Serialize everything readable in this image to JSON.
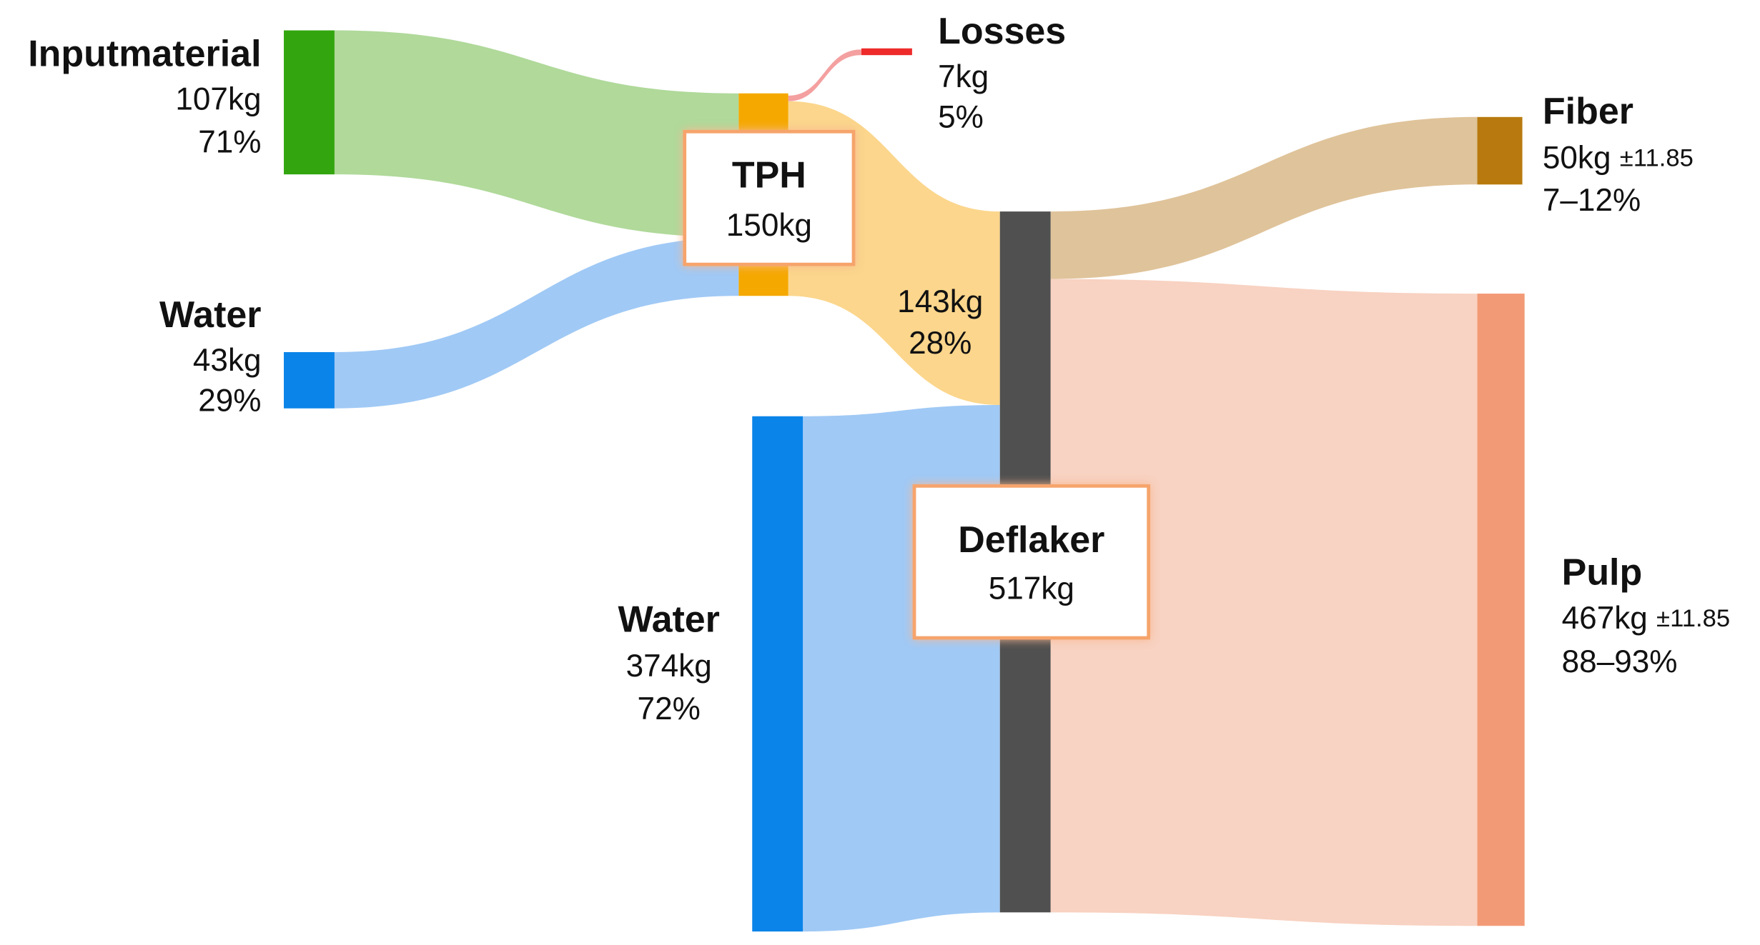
{
  "nodes": [
    {
      "name": "Inputmaterial",
      "amount": "107kg",
      "share": "71%"
    },
    {
      "name": "Water",
      "amount": "43kg",
      "share": "29%"
    },
    {
      "name": "TPH",
      "amount": "150kg"
    },
    {
      "name": "Losses",
      "amount": "7kg",
      "share": "5%"
    },
    {
      "name": "Water",
      "amount": "374kg",
      "share": "72%"
    },
    {
      "name": "Deflaker",
      "amount": "517kg"
    },
    {
      "name": "Fiber",
      "amount": "50kg",
      "uncertainty": "±11.85",
      "share": "7–12%"
    },
    {
      "name": "Pulp",
      "amount": "467kg",
      "uncertainty": "±11.85",
      "share": "88–93%"
    }
  ],
  "flows": [
    {
      "amount": "143kg",
      "share": "28%"
    }
  ]
}
